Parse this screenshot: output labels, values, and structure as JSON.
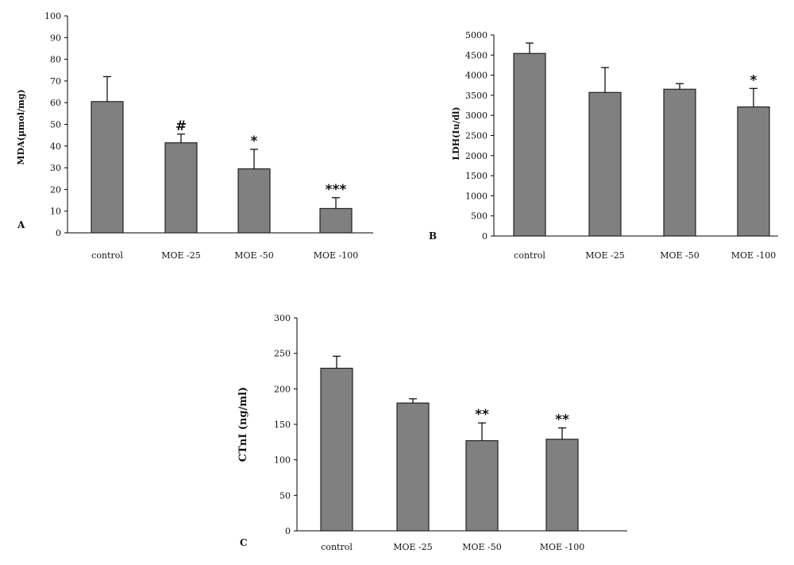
{
  "chart_data": [
    {
      "type": "bar",
      "panel_label": "A",
      "ylabel": "MDA(µmol/mg)",
      "categories": [
        "control",
        "MOE -25",
        "MOE -50",
        "MOE -100"
      ],
      "values": [
        60.5,
        41.5,
        29.5,
        11.2
      ],
      "errors": [
        11.5,
        4,
        9,
        5
      ],
      "annotations": [
        "",
        "#",
        "*",
        "***"
      ],
      "ylim": [
        0,
        100
      ],
      "yticks": [
        0,
        10,
        20,
        30,
        40,
        50,
        60,
        70,
        80,
        90,
        100
      ],
      "bar_color": "#808080"
    },
    {
      "type": "bar",
      "panel_label": "B",
      "ylabel": "LDH(Iu/dl)",
      "categories": [
        "control",
        "MOE -25",
        "MOE -50",
        "MOE -100"
      ],
      "values": [
        4540,
        3570,
        3650,
        3210
      ],
      "errors": [
        260,
        620,
        140,
        460
      ],
      "annotations": [
        "",
        "",
        "",
        "*"
      ],
      "ylim": [
        0,
        5000
      ],
      "yticks": [
        0,
        500,
        1000,
        1500,
        2000,
        2500,
        3000,
        3500,
        4000,
        4500,
        5000
      ],
      "bar_color": "#808080"
    },
    {
      "type": "bar",
      "panel_label": "C",
      "ylabel": "CTnI (ng/ml)",
      "categories": [
        "control",
        "MOE -25",
        "MOE -50",
        "MOE -100"
      ],
      "values": [
        229,
        180,
        127,
        129
      ],
      "errors": [
        17,
        6,
        25,
        16
      ],
      "annotations": [
        "",
        "",
        "**",
        "**"
      ],
      "ylim": [
        0,
        300
      ],
      "yticks": [
        0,
        50,
        100,
        150,
        200,
        250,
        300
      ],
      "bar_color": "#808080"
    }
  ]
}
